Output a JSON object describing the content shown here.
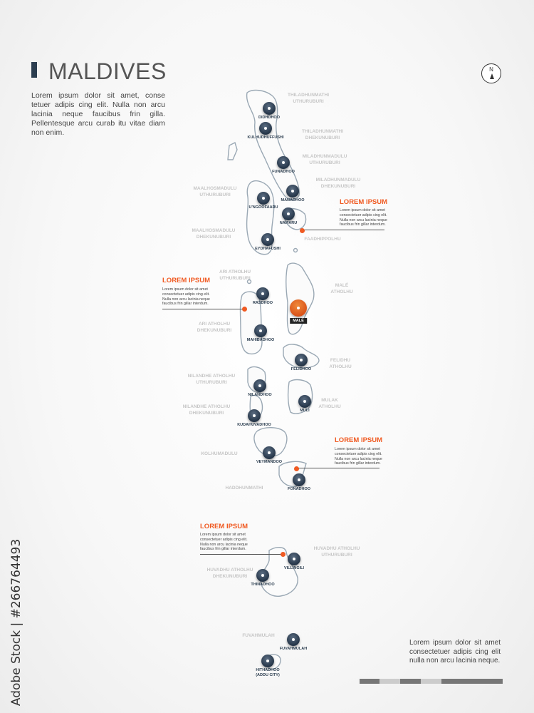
{
  "header": {
    "title": "MALDIVES",
    "intro": "Lorem ipsum dolor sit amet, conse tetuer adipis cing elit. Nulla non arcu lacinia neque faucibus frin gilla. Pellentesque arcu curab itu vitae diam non enim."
  },
  "compass": {
    "label": "N"
  },
  "colors": {
    "accent": "#f05a22",
    "marker": "#2c3e50",
    "land_outline": "#9aa8b4",
    "region_label": "#c6c6c6"
  },
  "regions": [
    "THILADHUNMATHI\nUTHURUBURI",
    "THILADHUNMATHI\nDHEKUNUBURI",
    "MILADHUNMADULU\nUTHURUBURI",
    "MILADHUNMADULU\nDHEKUNUBURI",
    "MAALHOSMADULU\nUTHURUBURI",
    "MAALHOSMADULU\nDHEKUNUBURI",
    "FAADHIPPOLHU",
    "ARI ATHOLHU\nUTHURUBURI",
    "MALÉ\nATHOLHU",
    "ARI ATHOLHU\nDHEKUNUBURI",
    "FELIDHU\nATHOLHU",
    "NILANDHE ATHOLHU\nUTHURUBURI",
    "MULAK\nATHOLHU",
    "NILANDHE ATHOLHU\nDHEKUNUBURI",
    "KOLHUMADULU",
    "HADDHUNMATHI",
    "HUVADHU ATHOLHU\nUTHURUBURI",
    "HUVADHU ATHOLHU\nDHEKUNUBURI",
    "FUVAHMULAH"
  ],
  "cities": [
    "DIDHDHOO",
    "KULHUDHUFFUSHI",
    "FUNADHOO",
    "MANADHOO",
    "U'NGOOFAARU",
    "NAIFARU",
    "EYDHAFUSHI",
    "RASDHOO",
    "MAHIBADHOO",
    "FELIDHOO",
    "NILANDHOO",
    "MULI",
    "KUDAHUVADHOO",
    "VEYMANDOO",
    "FONADHOO",
    "VILLINGILI",
    "THINADHOO",
    "FUVAHMULAH",
    "HITHADHOO\n(ADDU CITY)"
  ],
  "capital": {
    "name": "MALÉ"
  },
  "callouts": [
    {
      "title": "LOREM IPSUM",
      "text": "Lorem ipsum dolor sit amet consectetuer adipis cing elit. Nulla non arcu lacinia neque faucibus frin gillar interdum."
    },
    {
      "title": "LOREM IPSUM",
      "text": "Lorem ipsum dolor sit amet consectetuer adipis cing elit. Nulla non arcu lacinia neque faucibus frin gillar interdum."
    },
    {
      "title": "LOREM IPSUM",
      "text": "Lorem ipsum dolor sit amet consectetuer adipis cing elit. Nulla non arcu lacinia neque faucibus frin gillar interdum."
    },
    {
      "title": "LOREM IPSUM",
      "text": "Lorem ipsum dolor sit amet consectetuer adipis cing elit. Nulla non arcu lacinia neque faucibus frin gillar interdum."
    }
  ],
  "footer": {
    "text": "Lorem ipsum dolor sit amet consectetuer adipis cing elit nulla non arcu lacinia neque.",
    "scale_colors": [
      "#777777",
      "#cccccc",
      "#777777",
      "#cccccc",
      "#777777"
    ]
  },
  "watermark": "Adobe Stock | #266764493"
}
